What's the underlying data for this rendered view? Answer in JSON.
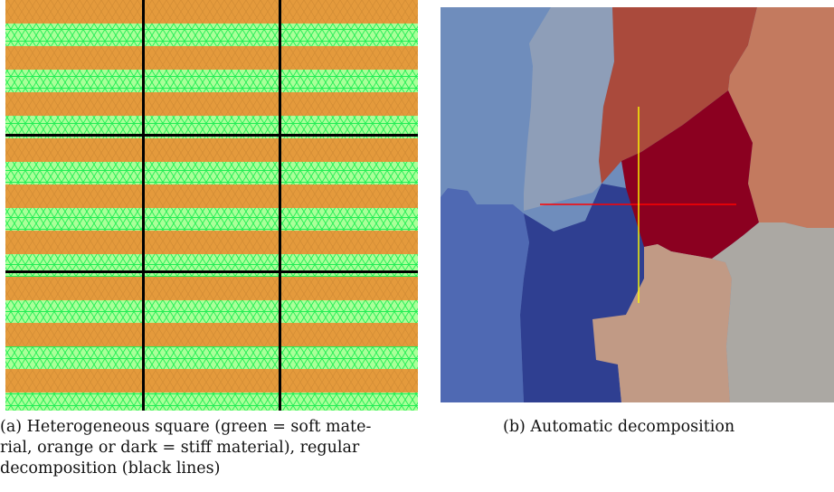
{
  "panel_a": {
    "caption": "(a) Heterogeneous square (green = soft material, orange or dark = stiff material), regular decomposition (black lines)",
    "caption_lines": [
      "(a) Heterogeneous square (green = soft mate-",
      "rial, orange or dark = stiff material), regular",
      "decomposition (black lines)"
    ],
    "colors": {
      "soft": "#aaff99",
      "soft_mesh": "#22ee55",
      "stiff": "#e49a3c",
      "stiff_mesh": "#c9872f",
      "grid": "#000000"
    }
  },
  "panel_b": {
    "caption": "(b) Automatic decomposition",
    "colors": {
      "pale_blue": "#6f8dbc",
      "grey_blue": "#8e9eb8",
      "mid_blue": "#4f69b3",
      "dark_blue": "#2f3f91",
      "brick": "#aa4a3c",
      "salmon": "#c37a5f",
      "dark_red": "#8b0020",
      "tan": "#c19a85",
      "grey": "#aba8a3",
      "red_line": "#ff0000",
      "yellow_line": "#ffff00"
    }
  }
}
